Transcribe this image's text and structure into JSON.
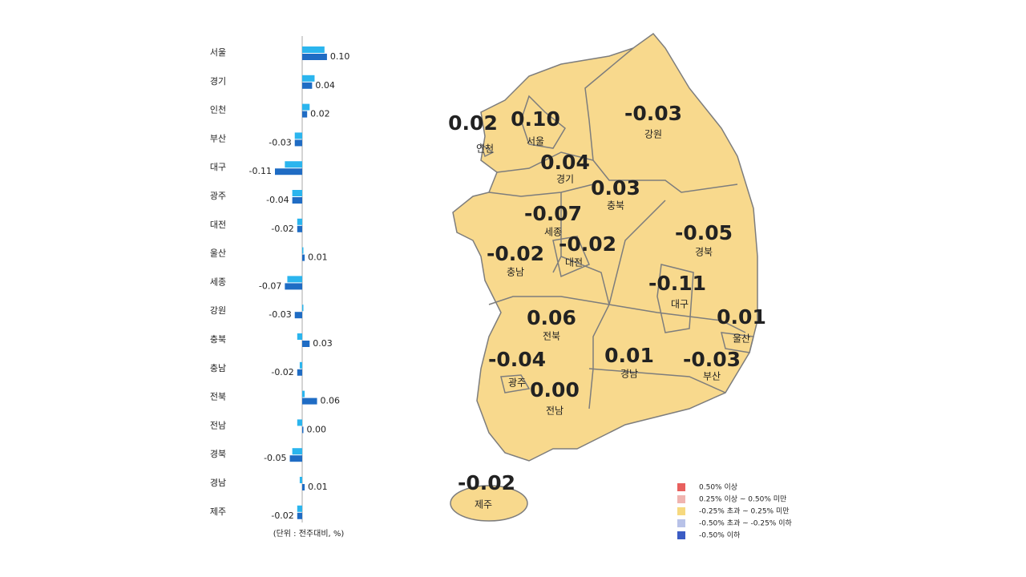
{
  "chart_data": [
    {
      "type": "hbar",
      "categories": [
        "서울",
        "경기",
        "인천",
        "부산",
        "대구",
        "광주",
        "대전",
        "울산",
        "세종",
        "강원",
        "충북",
        "충남",
        "전북",
        "전남",
        "경북",
        "경남",
        "제주"
      ],
      "series": [
        {
          "color": "#2bb5ee",
          "values": [
            0.09,
            0.05,
            0.03,
            -0.03,
            -0.07,
            -0.04,
            -0.02,
            0.0,
            -0.06,
            0.0,
            -0.02,
            -0.01,
            0.01,
            -0.02,
            -0.04,
            -0.01,
            -0.02
          ]
        },
        {
          "color": "#1f6cc4",
          "values": [
            0.1,
            0.04,
            0.02,
            -0.03,
            -0.11,
            -0.04,
            -0.02,
            0.01,
            -0.07,
            -0.03,
            0.03,
            -0.02,
            0.06,
            0.0,
            -0.05,
            0.01,
            -0.02
          ],
          "value_labels": [
            "0.10",
            "0.04",
            "0.02",
            "-0.03",
            "-0.11",
            "-0.04",
            "-0.02",
            "0.01",
            "-0.07",
            "-0.03",
            "0.03",
            "-0.02",
            "0.06",
            "0.00",
            "-0.05",
            "0.01",
            "-0.02"
          ]
        }
      ],
      "note": "(단위 : 전주대비, %)"
    },
    {
      "type": "map",
      "color": "#f8d98d",
      "categories": [
        "서울",
        "경기",
        "인천",
        "부산",
        "대구",
        "광주",
        "대전",
        "울산",
        "세종",
        "강원",
        "충북",
        "충남",
        "전북",
        "전남",
        "경북",
        "경남",
        "제주"
      ],
      "values": [
        0.1,
        0.04,
        0.02,
        -0.03,
        -0.11,
        -0.04,
        -0.02,
        0.01,
        -0.07,
        -0.03,
        0.03,
        -0.02,
        0.06,
        0.0,
        -0.05,
        0.01,
        -0.02
      ],
      "value_labels": [
        "0.10",
        "0.04",
        "0.02",
        "-0.03",
        "-0.11",
        "-0.04",
        "-0.02",
        "0.01",
        "-0.07",
        "-0.03",
        "0.03",
        "-0.02",
        "0.06",
        "0.00",
        "-0.05",
        "0.01",
        "-0.02"
      ],
      "legend": [
        {
          "label": "0.50% 이상",
          "color": "#e8605e"
        },
        {
          "label": "0.25% 이상 ~ 0.50% 미만",
          "color": "#f0b4b0"
        },
        {
          "label": "-0.25% 초과 ~ 0.25% 미만",
          "color": "#f6d97f"
        },
        {
          "label": "-0.50% 초과 ~ -0.25% 이하",
          "color": "#b8c2e8"
        },
        {
          "label": "-0.50% 이하",
          "color": "#3b5cc4"
        }
      ]
    }
  ]
}
